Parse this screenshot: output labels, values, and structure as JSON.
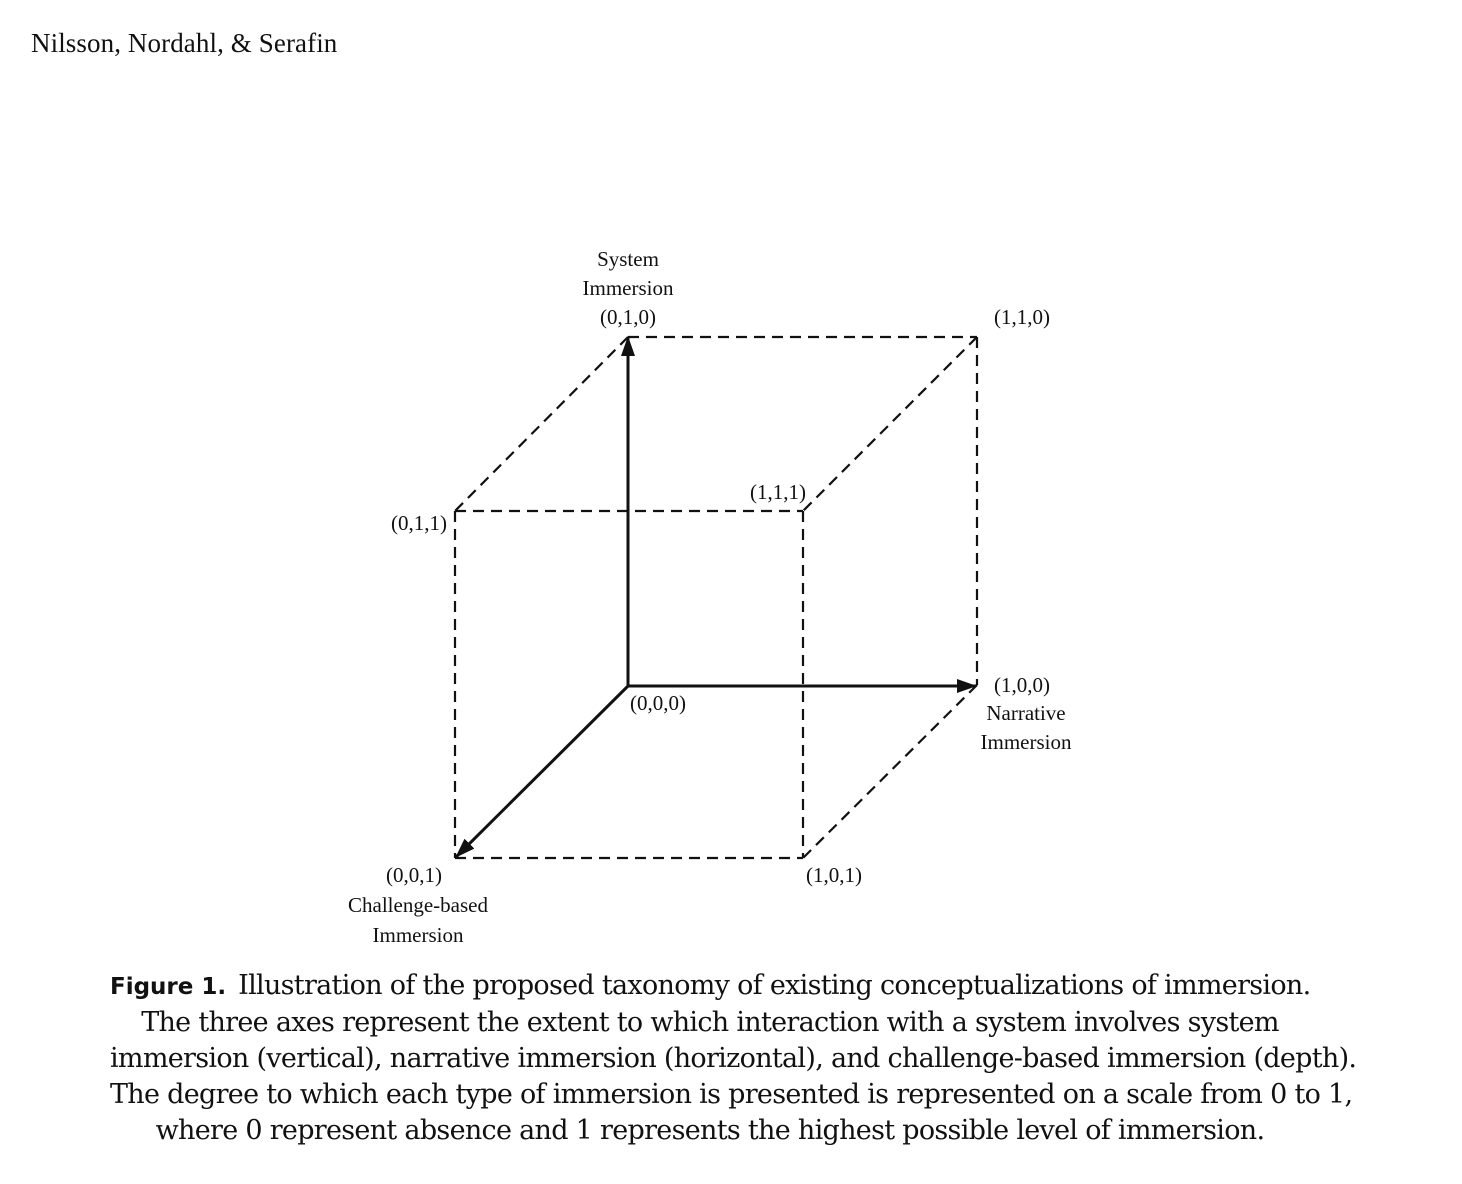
{
  "header": {
    "running_head": "Nilsson, Nordahl, & Serafin"
  },
  "figure": {
    "vertex_labels": {
      "origin": "(0,0,0)",
      "system": "(0,1,0)",
      "system_narrative": "(1,1,0)",
      "system_challenge": "(0,1,1)",
      "all": "(1,1,1)",
      "narrative": "(1,0,0)",
      "challenge": "(0,0,1)",
      "narrative_challenge": "(1,0,1)"
    },
    "axis_names": {
      "system_line1": "System",
      "system_line2": "Immersion",
      "narrative_line1": "Narrative",
      "narrative_line2": "Immersion",
      "challenge_line1": "Challenge-based",
      "challenge_line2": "Immersion"
    },
    "caption": {
      "label": "Figure 1.",
      "line1": "Illustration of the proposed taxonomy of existing conceptualizations of immersion.",
      "line2": "The three axes represent the extent to which interaction with a system involves system",
      "line3": "immersion (vertical), narrative immersion (horizontal), and challenge-based immersion (depth).",
      "line4": "The degree to which each type of immersion is presented is represented on a scale from 0 to 1,",
      "line5": "where 0 represent absence and 1 represents the highest possible level of immersion."
    }
  }
}
